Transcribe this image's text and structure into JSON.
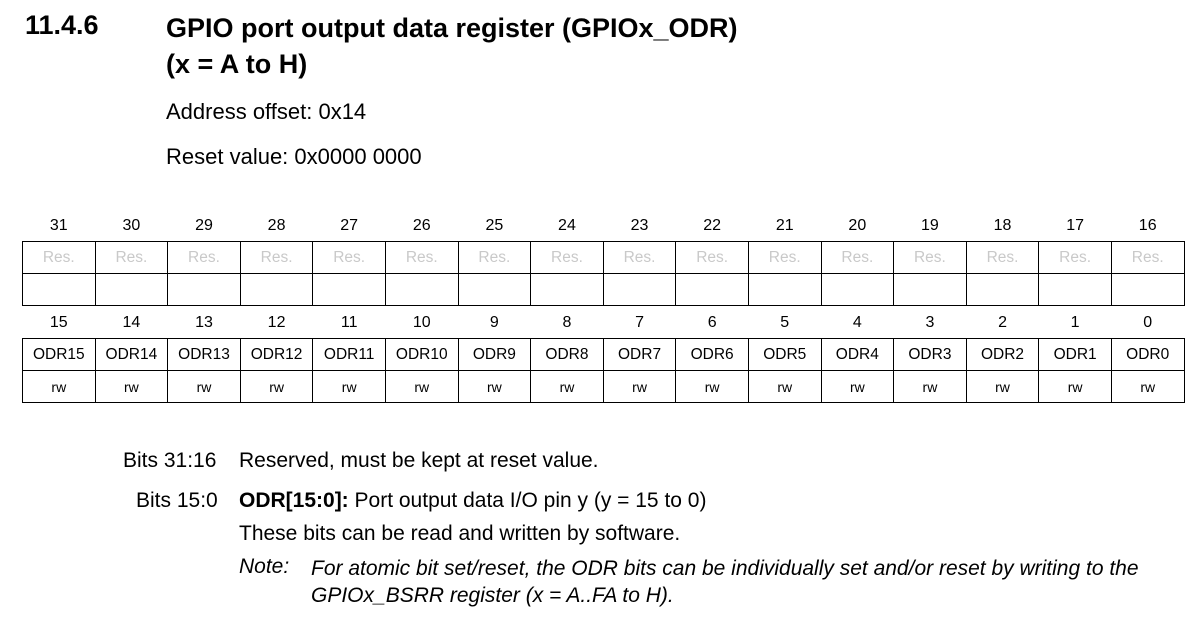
{
  "section": {
    "number": "11.4.6",
    "title_line1": "GPIO port output data register (GPIOx_ODR)",
    "title_line2": "(x = A to H)",
    "address_offset": "Address offset: 0x14",
    "reset_value": "Reset value: 0x0000 0000"
  },
  "register": {
    "upper_bits": [
      "31",
      "30",
      "29",
      "28",
      "27",
      "26",
      "25",
      "24",
      "23",
      "22",
      "21",
      "20",
      "19",
      "18",
      "17",
      "16"
    ],
    "upper_fields": [
      "Res.",
      "Res.",
      "Res.",
      "Res.",
      "Res.",
      "Res.",
      "Res.",
      "Res.",
      "Res.",
      "Res.",
      "Res.",
      "Res.",
      "Res.",
      "Res.",
      "Res.",
      "Res."
    ],
    "lower_bits": [
      "15",
      "14",
      "13",
      "12",
      "11",
      "10",
      "9",
      "8",
      "7",
      "6",
      "5",
      "4",
      "3",
      "2",
      "1",
      "0"
    ],
    "lower_fields": [
      "ODR15",
      "ODR14",
      "ODR13",
      "ODR12",
      "ODR11",
      "ODR10",
      "ODR9",
      "ODR8",
      "ODR7",
      "ODR6",
      "ODR5",
      "ODR4",
      "ODR3",
      "ODR2",
      "ODR1",
      "ODR0"
    ],
    "lower_access": [
      "rw",
      "rw",
      "rw",
      "rw",
      "rw",
      "rw",
      "rw",
      "rw",
      "rw",
      "rw",
      "rw",
      "rw",
      "rw",
      "rw",
      "rw",
      "rw"
    ]
  },
  "descriptions": {
    "bits_31_16_label": "Bits 31:16",
    "bits_31_16_text": "Reserved, must be kept at reset value.",
    "bits_15_0_label": "Bits 15:0",
    "bits_15_0_field": "ODR[15:0]:",
    "bits_15_0_text": " Port output data I/O pin y (y = 15 to 0)",
    "bits_15_0_detail": "These bits can be read and written by software.",
    "note_label": "Note:",
    "note_text": "For atomic bit set/reset, the ODR bits can be individually set and/or reset by writing to the GPIOx_BSRR register (x = A..FA to H)."
  }
}
